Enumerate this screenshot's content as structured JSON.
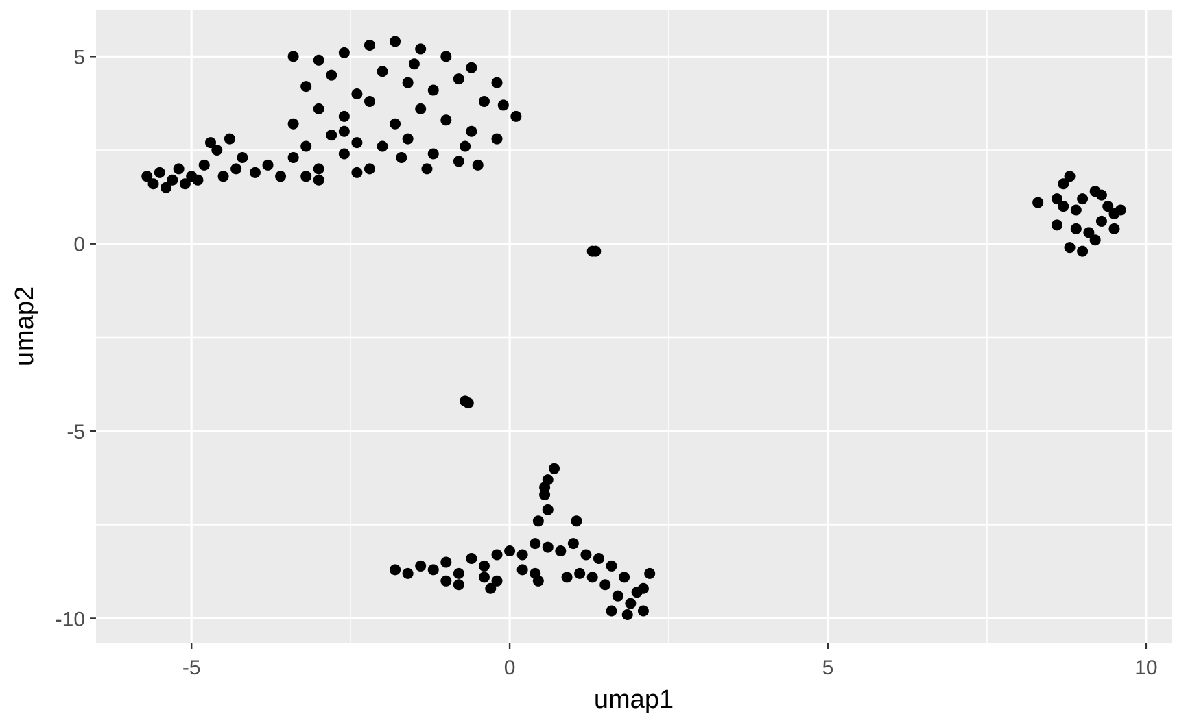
{
  "chart_data": {
    "type": "scatter",
    "title": "",
    "xlabel": "umap1",
    "ylabel": "umap2",
    "xlim": [
      -6.5,
      10.4
    ],
    "ylim": [
      -10.65,
      6.25
    ],
    "x_ticks": [
      -5,
      0,
      5,
      10
    ],
    "x_tick_labels": [
      "-5",
      "0",
      "5",
      "10"
    ],
    "y_ticks": [
      5,
      0,
      -5,
      -10
    ],
    "y_tick_labels": [
      "5",
      "0",
      "-5",
      "-10"
    ],
    "grid": true,
    "legend": "none",
    "colors": {
      "panel": "#ebebeb",
      "grid": "#ffffff",
      "points": "#000000",
      "tick_text": "#4d4d4d"
    },
    "series": [
      {
        "values": [
          [
            -5.7,
            1.8
          ],
          [
            -5.6,
            1.6
          ],
          [
            -5.5,
            1.9
          ],
          [
            -5.4,
            1.5
          ],
          [
            -5.3,
            1.7
          ],
          [
            -5.2,
            2.0
          ],
          [
            -5.1,
            1.6
          ],
          [
            -5.0,
            1.8
          ],
          [
            -4.9,
            1.7
          ],
          [
            -4.8,
            2.1
          ],
          [
            -4.7,
            2.7
          ],
          [
            -4.6,
            2.5
          ],
          [
            -4.5,
            1.8
          ],
          [
            -4.4,
            2.8
          ],
          [
            -4.3,
            2.0
          ],
          [
            -4.2,
            2.3
          ],
          [
            -4.0,
            1.9
          ],
          [
            -3.8,
            2.1
          ],
          [
            -3.6,
            1.8
          ],
          [
            -3.4,
            2.3
          ],
          [
            -3.2,
            2.6
          ],
          [
            -3.0,
            2.0
          ],
          [
            -2.8,
            2.9
          ],
          [
            -2.6,
            2.4
          ],
          [
            -2.4,
            2.7
          ],
          [
            -2.2,
            2.0
          ],
          [
            -3.4,
            3.2
          ],
          [
            -3.0,
            1.7
          ],
          [
            -3.2,
            1.8
          ],
          [
            -3.4,
            5.0
          ],
          [
            -3.0,
            4.9
          ],
          [
            -2.6,
            5.1
          ],
          [
            -2.2,
            5.3
          ],
          [
            -1.8,
            5.4
          ],
          [
            -1.4,
            5.2
          ],
          [
            -1.0,
            5.0
          ],
          [
            -0.6,
            4.7
          ],
          [
            -0.2,
            4.3
          ],
          [
            0.1,
            3.4
          ],
          [
            -3.2,
            4.2
          ],
          [
            -2.8,
            4.5
          ],
          [
            -2.4,
            4.0
          ],
          [
            -2.0,
            4.6
          ],
          [
            -1.6,
            4.3
          ],
          [
            -1.2,
            4.1
          ],
          [
            -0.8,
            4.4
          ],
          [
            -0.4,
            3.8
          ],
          [
            -3.0,
            3.6
          ],
          [
            -2.6,
            3.4
          ],
          [
            -2.2,
            3.8
          ],
          [
            -1.8,
            3.2
          ],
          [
            -1.4,
            3.6
          ],
          [
            -1.0,
            3.3
          ],
          [
            -0.6,
            3.0
          ],
          [
            -0.2,
            2.8
          ],
          [
            -2.0,
            2.6
          ],
          [
            -1.6,
            2.8
          ],
          [
            -1.2,
            2.4
          ],
          [
            -0.8,
            2.2
          ],
          [
            -0.5,
            2.1
          ],
          [
            -1.3,
            2.0
          ],
          [
            -2.4,
            1.9
          ],
          [
            -1.7,
            2.3
          ],
          [
            -0.1,
            3.7
          ],
          [
            -2.6,
            3.0
          ],
          [
            -1.5,
            4.8
          ],
          [
            -0.7,
            2.6
          ],
          [
            1.3,
            -0.2
          ],
          [
            1.35,
            -0.2
          ],
          [
            -0.7,
            -4.2
          ],
          [
            -0.65,
            -4.25
          ],
          [
            0.7,
            -6.0
          ],
          [
            0.6,
            -6.3
          ],
          [
            0.55,
            -6.7
          ],
          [
            0.6,
            -7.1
          ],
          [
            0.45,
            -7.4
          ],
          [
            1.05,
            -7.4
          ],
          [
            0.55,
            -6.5
          ],
          [
            -1.8,
            -8.7
          ],
          [
            -1.6,
            -8.8
          ],
          [
            -1.4,
            -8.6
          ],
          [
            -1.2,
            -8.7
          ],
          [
            -1.0,
            -8.5
          ],
          [
            -0.8,
            -8.8
          ],
          [
            -0.6,
            -8.4
          ],
          [
            -0.4,
            -8.6
          ],
          [
            -0.2,
            -8.3
          ],
          [
            0.0,
            -8.2
          ],
          [
            0.2,
            -8.3
          ],
          [
            0.4,
            -8.0
          ],
          [
            0.6,
            -8.1
          ],
          [
            0.8,
            -8.2
          ],
          [
            1.0,
            -8.0
          ],
          [
            1.2,
            -8.3
          ],
          [
            1.4,
            -8.4
          ],
          [
            1.6,
            -8.6
          ],
          [
            1.8,
            -8.9
          ],
          [
            2.0,
            -9.3
          ],
          [
            2.1,
            -9.8
          ],
          [
            1.9,
            -9.6
          ],
          [
            1.7,
            -9.4
          ],
          [
            1.5,
            -9.1
          ],
          [
            1.3,
            -8.9
          ],
          [
            1.1,
            -8.8
          ],
          [
            0.9,
            -8.9
          ],
          [
            0.4,
            -8.8
          ],
          [
            0.2,
            -8.7
          ],
          [
            -0.2,
            -9.0
          ],
          [
            -0.4,
            -8.9
          ],
          [
            -0.8,
            -9.1
          ],
          [
            -1.0,
            -9.0
          ],
          [
            2.2,
            -8.8
          ],
          [
            2.1,
            -9.2
          ],
          [
            1.6,
            -9.8
          ],
          [
            1.85,
            -9.9
          ],
          [
            -0.3,
            -9.2
          ],
          [
            0.45,
            -9.0
          ],
          [
            8.3,
            1.1
          ],
          [
            8.6,
            0.5
          ],
          [
            8.7,
            1.6
          ],
          [
            8.8,
            1.8
          ],
          [
            8.9,
            0.9
          ],
          [
            9.0,
            1.2
          ],
          [
            9.1,
            0.3
          ],
          [
            9.2,
            1.4
          ],
          [
            9.3,
            0.6
          ],
          [
            9.4,
            1.0
          ],
          [
            9.5,
            0.4
          ],
          [
            9.6,
            0.9
          ],
          [
            8.8,
            -0.1
          ],
          [
            9.0,
            -0.2
          ],
          [
            8.7,
            1.0
          ],
          [
            9.3,
            1.3
          ],
          [
            9.2,
            0.1
          ],
          [
            8.9,
            0.4
          ],
          [
            9.5,
            0.8
          ],
          [
            8.6,
            1.2
          ]
        ]
      }
    ]
  }
}
